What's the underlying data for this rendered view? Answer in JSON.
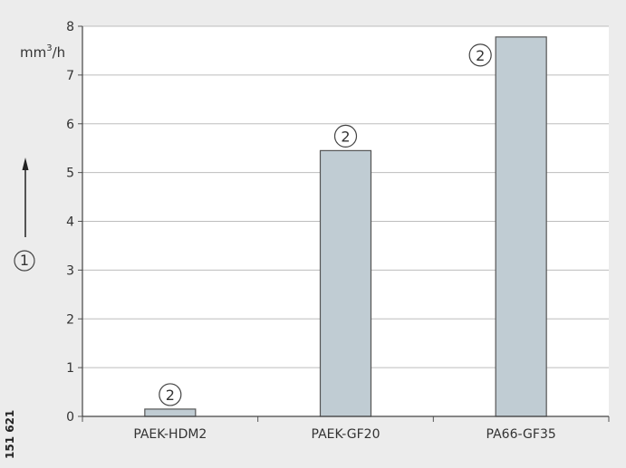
{
  "chart_data": {
    "type": "bar",
    "categories": [
      "PAEK-HDM2",
      "PAEK-GF20",
      "PA66-GF35"
    ],
    "values": [
      0.15,
      5.45,
      7.78
    ],
    "ylim": [
      0,
      8
    ],
    "yticks": [
      0,
      1,
      2,
      3,
      4,
      5,
      6,
      7,
      8
    ],
    "unit": {
      "base": "mm",
      "exp": "3",
      "suffix": "/h"
    },
    "axis_marker": "1",
    "bar_callout": "2",
    "side_label": "151 621",
    "grid": true,
    "bar_color": "#c0ccd3",
    "bar_edge_color": "#555555",
    "grid_color": "#bdbdbd",
    "background_color": "#ececec"
  }
}
